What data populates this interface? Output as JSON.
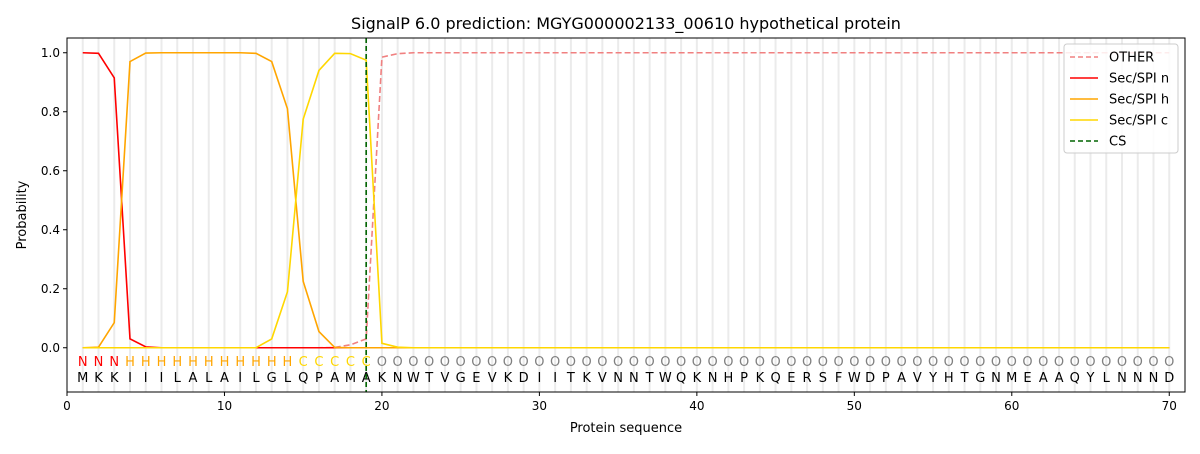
{
  "chart_data": {
    "type": "line",
    "title": "SignalP 6.0 prediction: MGYG000002133_00610 hypothetical protein",
    "xlabel": "Protein sequence",
    "ylabel": "Probability",
    "xlim": [
      0,
      71
    ],
    "ylim": [
      -0.15,
      1.05
    ],
    "xticks": [
      0,
      10,
      20,
      30,
      40,
      50,
      60,
      70
    ],
    "yticks": [
      0.0,
      0.2,
      0.4,
      0.6,
      0.8,
      1.0
    ],
    "legend_position": "top-right",
    "grid": "vertical lines at each residue",
    "sequence": "MKKIIILALAILGLQPAMAKNWTVGEVKDIITKVNNTWQKNHPKQERSFWDPAVYHTGNMEAAQYLNNND",
    "labels": "NNNHHHHHHHHHHHCCCCCOOOOOOOOOOOOOOOOOOOOOOOOOOOOOOOOOOOOOOOOOOOOOOOOOOO",
    "label_colors": {
      "N": "#ff0000",
      "H": "#ffa500",
      "C": "#ffd700",
      "O": "#808080"
    },
    "cleavage_site": 19,
    "series": [
      {
        "name": "OTHER",
        "color": "#f08080",
        "dash": true,
        "values": [
          0,
          0,
          0,
          0,
          0,
          0,
          0,
          0,
          0,
          0,
          0,
          0,
          0,
          0,
          0,
          0,
          0.001,
          0.01,
          0.03,
          0.985,
          0.997,
          1,
          1,
          1,
          1,
          1,
          1,
          1,
          1,
          1,
          1,
          1,
          1,
          1,
          1,
          1,
          1,
          1,
          1,
          1,
          1,
          1,
          1,
          1,
          1,
          1,
          1,
          1,
          1,
          1,
          1,
          1,
          1,
          1,
          1,
          1,
          1,
          1,
          1,
          1,
          1,
          1,
          1,
          1,
          1,
          1,
          1,
          1,
          1,
          1
        ]
      },
      {
        "name": "Sec/SPI n",
        "color": "#ff0000",
        "dash": false,
        "values": [
          1.0,
          0.998,
          0.915,
          0.03,
          0.003,
          0,
          0,
          0,
          0,
          0,
          0,
          0,
          0,
          0,
          0,
          0,
          0,
          0,
          0,
          0,
          0,
          0,
          0,
          0,
          0,
          0,
          0,
          0,
          0,
          0,
          0,
          0,
          0,
          0,
          0,
          0,
          0,
          0,
          0,
          0,
          0,
          0,
          0,
          0,
          0,
          0,
          0,
          0,
          0,
          0,
          0,
          0,
          0,
          0,
          0,
          0,
          0,
          0,
          0,
          0,
          0,
          0,
          0,
          0,
          0,
          0,
          0,
          0,
          0,
          0
        ]
      },
      {
        "name": "Sec/SPI h",
        "color": "#ffa500",
        "dash": false,
        "values": [
          0,
          0.002,
          0.085,
          0.97,
          0.999,
          1,
          1,
          1,
          1,
          1,
          1,
          0.998,
          0.97,
          0.81,
          0.225,
          0.055,
          0.001,
          0,
          0,
          0,
          0,
          0,
          0,
          0,
          0,
          0,
          0,
          0,
          0,
          0,
          0,
          0,
          0,
          0,
          0,
          0,
          0,
          0,
          0,
          0,
          0,
          0,
          0,
          0,
          0,
          0,
          0,
          0,
          0,
          0,
          0,
          0,
          0,
          0,
          0,
          0,
          0,
          0,
          0,
          0,
          0,
          0,
          0,
          0,
          0,
          0,
          0,
          0,
          0,
          0
        ]
      },
      {
        "name": "Sec/SPI c",
        "color": "#ffd700",
        "dash": false,
        "values": [
          0,
          0,
          0,
          0,
          0,
          0,
          0,
          0,
          0,
          0,
          0,
          0,
          0.03,
          0.19,
          0.775,
          0.94,
          0.998,
          0.997,
          0.975,
          0.015,
          0.002,
          0,
          0,
          0,
          0,
          0,
          0,
          0,
          0,
          0,
          0,
          0,
          0,
          0,
          0,
          0,
          0,
          0,
          0,
          0,
          0,
          0,
          0,
          0,
          0,
          0,
          0,
          0,
          0,
          0,
          0,
          0,
          0,
          0,
          0,
          0,
          0,
          0,
          0,
          0,
          0,
          0,
          0,
          0,
          0,
          0,
          0,
          0,
          0,
          0
        ]
      },
      {
        "name": "CS",
        "color": "#006400",
        "dash": true,
        "values": []
      }
    ]
  }
}
